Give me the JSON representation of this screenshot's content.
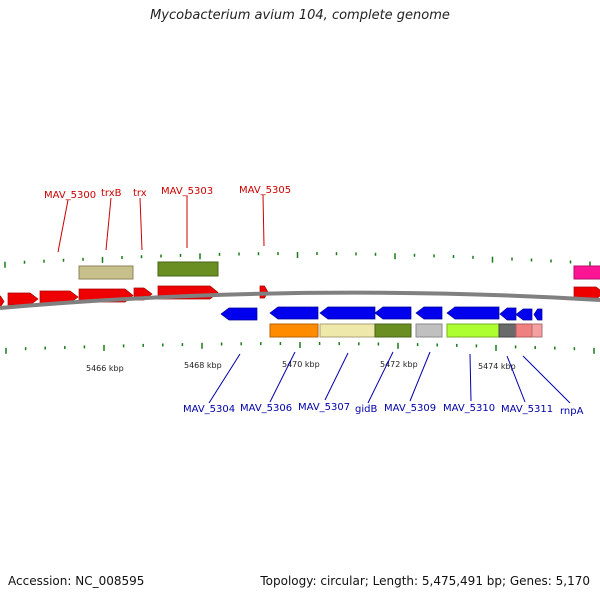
{
  "title": "Mycobacterium avium 104, complete genome",
  "footer": {
    "accession": "Accession: NC_008595",
    "summary": "Topology: circular; Length: 5,475,491 bp; Genes: 5,170"
  },
  "colors": {
    "plus_strand_label": "#cc0000",
    "minus_strand_label": "#0000aa",
    "backbone": "#808080",
    "tick": "#1a7a1a"
  },
  "scale_labels": [
    "5466 kbp",
    "5468 kbp",
    "5470 kbp",
    "5472 kbp",
    "5474 kbp"
  ],
  "plus_strand_genes": [
    {
      "label": "MAV_5300",
      "color": "#ee0000"
    },
    {
      "label": "trxB",
      "color": "#ee0000"
    },
    {
      "label": "trx",
      "color": "#ee0000"
    },
    {
      "label": "MAV_5303",
      "color": "#ee0000"
    },
    {
      "label": "MAV_5305",
      "color": "#ee0000"
    }
  ],
  "minus_strand_genes": [
    {
      "label": "MAV_5304",
      "color": "#0000ee"
    },
    {
      "label": "MAV_5306",
      "color": "#0000ee"
    },
    {
      "label": "MAV_5307",
      "color": "#0000ee"
    },
    {
      "label": "gidB",
      "color": "#0000ee"
    },
    {
      "label": "MAV_5309",
      "color": "#0000ee"
    },
    {
      "label": "MAV_5310",
      "color": "#0000ee"
    },
    {
      "label": "MAV_5311",
      "color": "#0000ee"
    },
    {
      "label": "rnpA",
      "color": "#0000ee"
    }
  ]
}
